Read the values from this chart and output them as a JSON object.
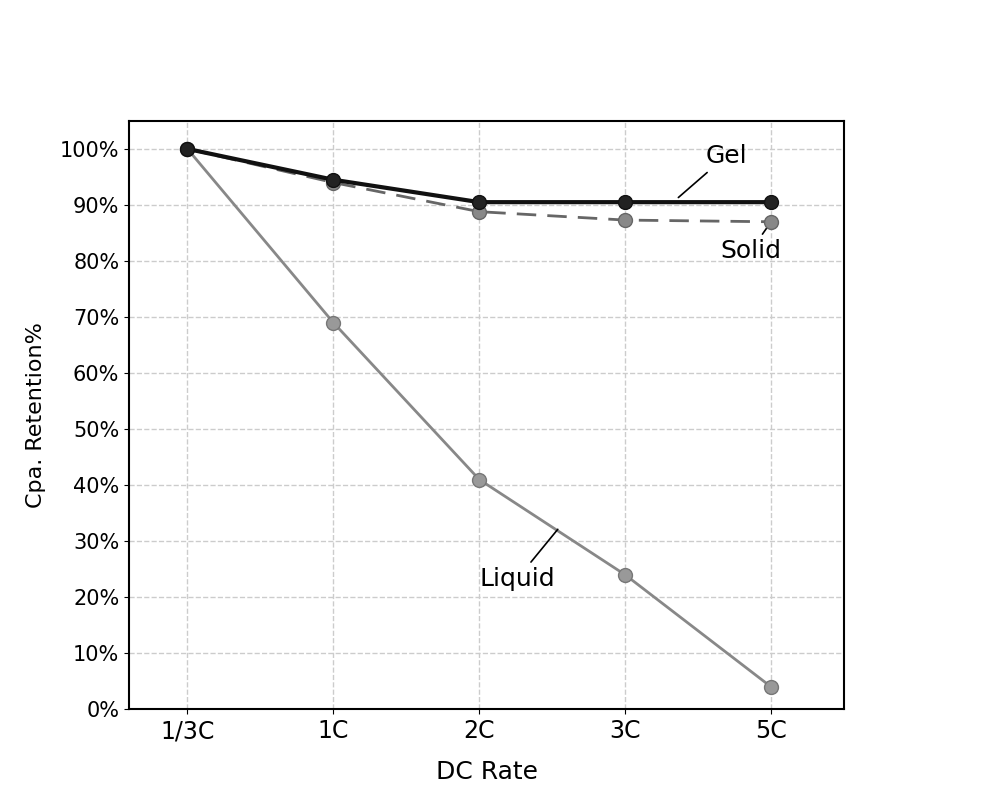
{
  "x_labels": [
    "1/3C",
    "1C",
    "2C",
    "3C",
    "5C"
  ],
  "x_positions": [
    0,
    1,
    2,
    3,
    4
  ],
  "gel": [
    1.0,
    0.945,
    0.905,
    0.905,
    0.905
  ],
  "solid": [
    1.0,
    0.94,
    0.888,
    0.873,
    0.87
  ],
  "liquid": [
    1.0,
    0.69,
    0.41,
    0.24,
    0.04
  ],
  "gel_color": "#111111",
  "solid_color": "#666666",
  "liquid_color": "#888888",
  "ylabel": "Cpa. Retention%",
  "xlabel": "DC Rate",
  "ylim": [
    0.0,
    1.05
  ],
  "yticks": [
    0.0,
    0.1,
    0.2,
    0.3,
    0.4,
    0.5,
    0.6,
    0.7,
    0.8,
    0.9,
    1.0
  ],
  "annotation_gel": "Gel",
  "annotation_solid": "Solid",
  "annotation_liquid": "Liquid",
  "background_color": "#ffffff",
  "grid_color": "#cccccc",
  "linewidth_gel": 3.0,
  "linewidth_solid": 2.0,
  "linewidth_liquid": 2.0,
  "marker": "o",
  "markersize": 10,
  "figure_width": 9.93,
  "figure_height": 8.06,
  "dpi": 100
}
